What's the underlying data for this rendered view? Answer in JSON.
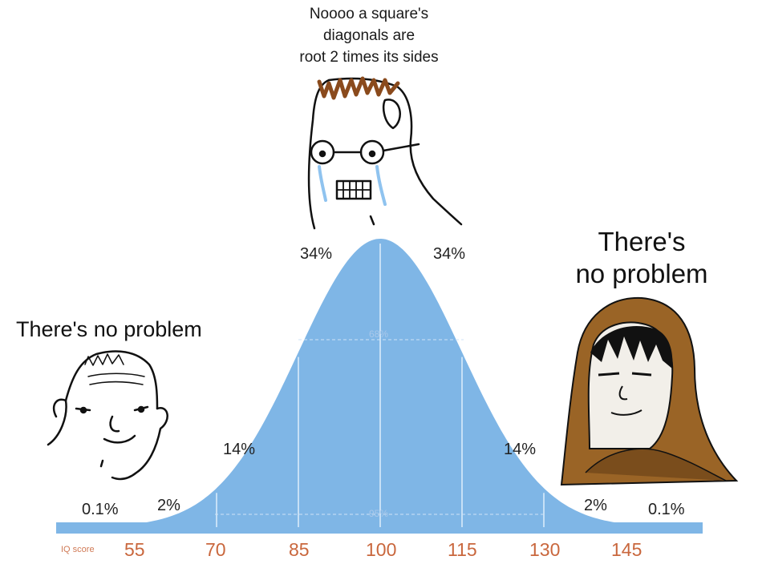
{
  "captions": {
    "middle": "Noooo a square's\ndiagonals are\nroot 2 times its sides",
    "left": "There's no problem",
    "right": "There's\nno problem"
  },
  "bell_curve": {
    "percent_labels": {
      "left_far": "0.1%",
      "left_2": "2%",
      "left_14": "14%",
      "left_34": "34%",
      "right_34": "34%",
      "right_14": "14%",
      "right_2": "2%",
      "right_far": "0.1%"
    },
    "band_labels": {
      "inner": "68%",
      "outer": "95%"
    },
    "axis_name": "IQ score",
    "ticks": [
      "55",
      "70",
      "85",
      "100",
      "115",
      "130",
      "145"
    ],
    "fill_color": "#7fb6e6"
  },
  "characters": [
    {
      "name": "wojak-crying-glasses",
      "position": "top-center"
    },
    {
      "name": "wojak-smiling-simple",
      "position": "left"
    },
    {
      "name": "hooded-monk",
      "position": "right"
    }
  ]
}
